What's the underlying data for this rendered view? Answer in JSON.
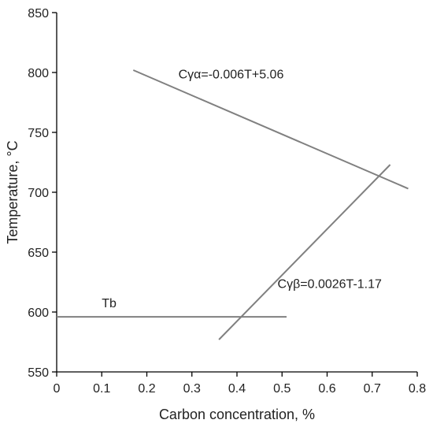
{
  "chart_data": {
    "type": "line",
    "title": "",
    "xlabel": "Carbon concentration, %",
    "ylabel": "Temperature, °C",
    "xlim": [
      0,
      0.8
    ],
    "ylim": [
      550,
      850
    ],
    "x_ticks": [
      0,
      0.1,
      0.2,
      0.3,
      0.4,
      0.5,
      0.6,
      0.7,
      0.8
    ],
    "y_ticks": [
      550,
      600,
      650,
      700,
      750,
      800,
      850
    ],
    "grid": false,
    "line_color": "#808080",
    "series": [
      {
        "points": [
          [
            0.17,
            802
          ],
          [
            0.78,
            703
          ]
        ]
      },
      {
        "points": [
          [
            0.36,
            577
          ],
          [
            0.74,
            723
          ]
        ]
      },
      {
        "points": [
          [
            0.0,
            596
          ],
          [
            0.51,
            596
          ]
        ]
      }
    ],
    "annotations": [
      {
        "text": "Cγα=-0.006T+5.06",
        "x": 0.27,
        "y": 795
      },
      {
        "text": "Cγβ=0.0026T-1.17",
        "x": 0.49,
        "y": 620
      },
      {
        "text": "Tb",
        "x": 0.1,
        "y": 604
      }
    ]
  }
}
